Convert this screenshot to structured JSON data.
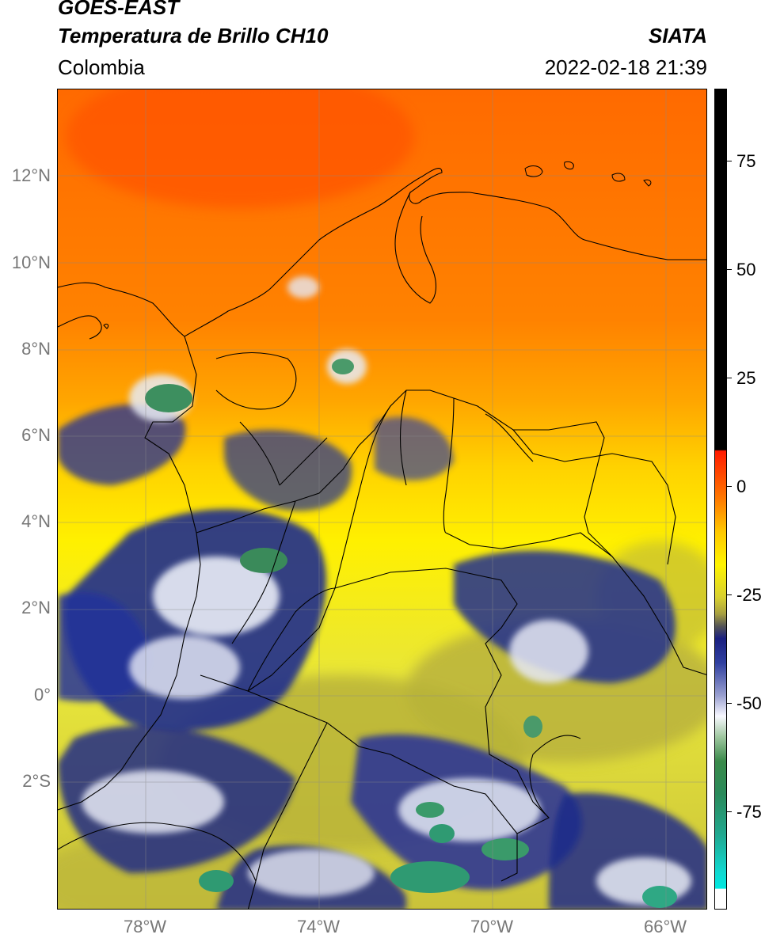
{
  "header": {
    "satellite": "GOES-EAST",
    "product": "Temperatura de Brillo CH10",
    "region": "Colombia",
    "agency": "SIATA",
    "datetime": "2022-02-18 21:39"
  },
  "map": {
    "lat_labels": [
      "12°N",
      "10°N",
      "8°N",
      "6°N",
      "4°N",
      "2°N",
      "0°",
      "2°S"
    ],
    "lon_labels": [
      "78°W",
      "74°W",
      "70°W",
      "66°W"
    ]
  },
  "colorbar": {
    "unit_hint": "°C",
    "tick_labels": [
      "75",
      "50",
      "25",
      "0",
      "-25",
      "-50",
      "-75"
    ],
    "range": [
      -95,
      90
    ]
  },
  "colors": {
    "warm_sea": "#ff7a00",
    "hot": "#ff5500",
    "mid": "#ffd400",
    "land_warm": "#f2e600",
    "olive": "#b9b43a",
    "navy": "#1c2a8a",
    "cloud_white": "#eef0f7",
    "green": "#2f8c5a",
    "teal": "#2fc4a4"
  }
}
